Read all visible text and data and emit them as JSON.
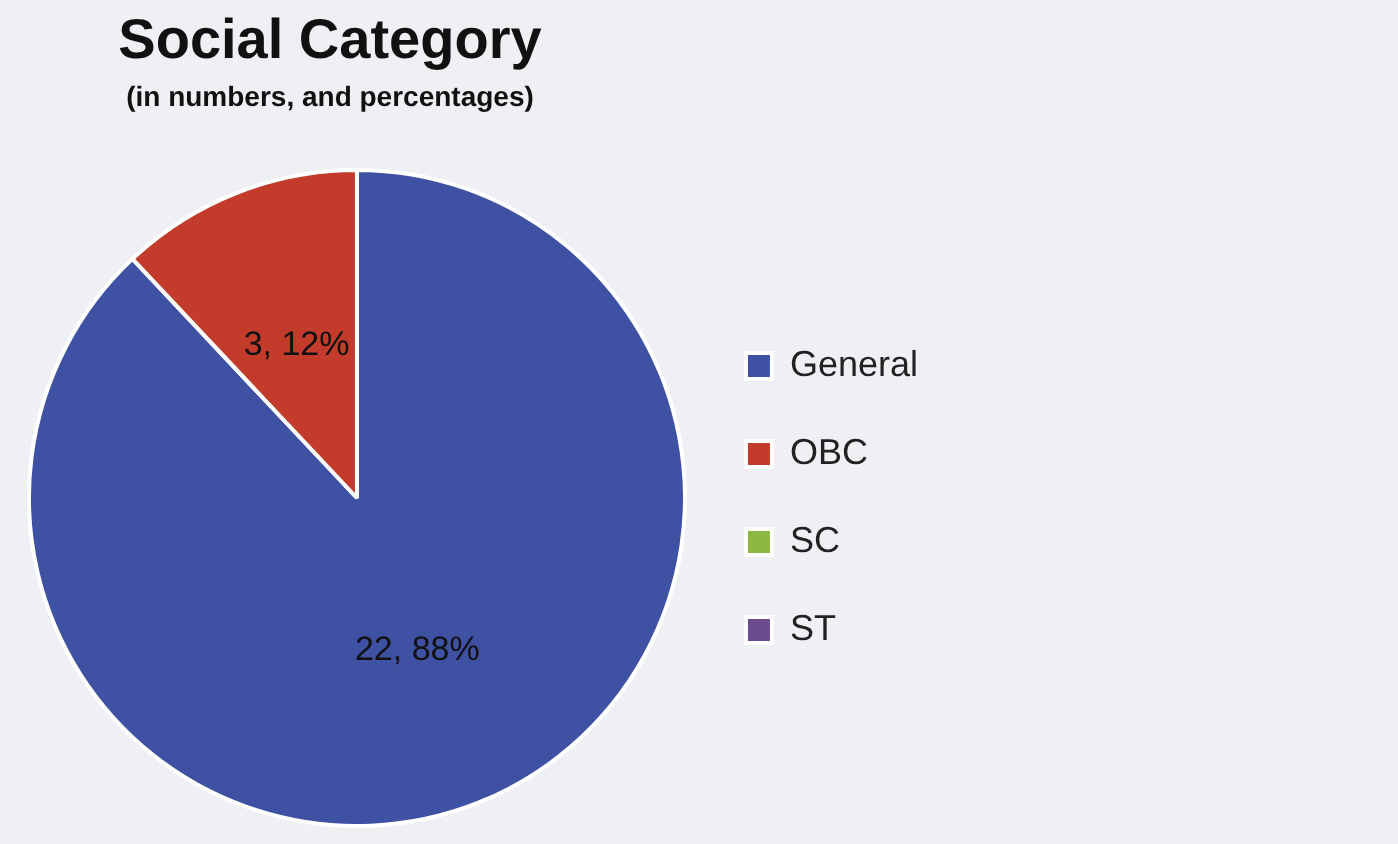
{
  "chart_data": {
    "type": "pie",
    "title": "Social Category",
    "subtitle": "(in numbers, and percentages)",
    "categories": [
      "General",
      "OBC",
      "SC",
      "ST"
    ],
    "values": [
      22,
      3,
      0,
      0
    ],
    "colors": [
      "#3f51a3",
      "#c23b2b",
      "#8db83f",
      "#6b4a8e"
    ],
    "value_labels": [
      "22, 88%",
      "3, 12%",
      null,
      null
    ],
    "legend": "right"
  }
}
